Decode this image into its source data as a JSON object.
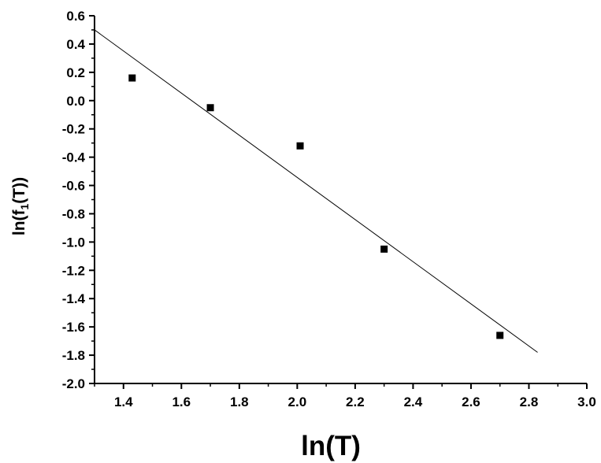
{
  "chart_data": {
    "type": "scatter",
    "xlabel": "ln(T)",
    "ylabel": {
      "prefix": "ln(f",
      "subscript": "1",
      "suffix": "(T))"
    },
    "xlim": [
      1.3,
      3.0
    ],
    "ylim": [
      -2.0,
      0.6
    ],
    "xticks": [
      "1.4",
      "1.6",
      "1.8",
      "2.0",
      "2.2",
      "2.4",
      "2.6",
      "2.8",
      "3.0"
    ],
    "yticks": [
      "0.6",
      "0.4",
      "0.2",
      "0.0",
      "-0.2",
      "-0.4",
      "-0.6",
      "-0.8",
      "-1.0",
      "-1.2",
      "-1.4",
      "-1.6",
      "-1.8",
      "-2.0"
    ],
    "grid": false,
    "series": [
      {
        "marker": "square",
        "color": "#000000",
        "x": [
          1.43,
          1.7,
          2.01,
          2.3,
          2.7
        ],
        "y": [
          0.16,
          -0.05,
          -0.32,
          -1.05,
          -1.66
        ]
      }
    ],
    "fit_line": {
      "color": "#000000",
      "x": [
        1.3,
        2.83
      ],
      "y": [
        0.5,
        -1.78
      ]
    }
  }
}
